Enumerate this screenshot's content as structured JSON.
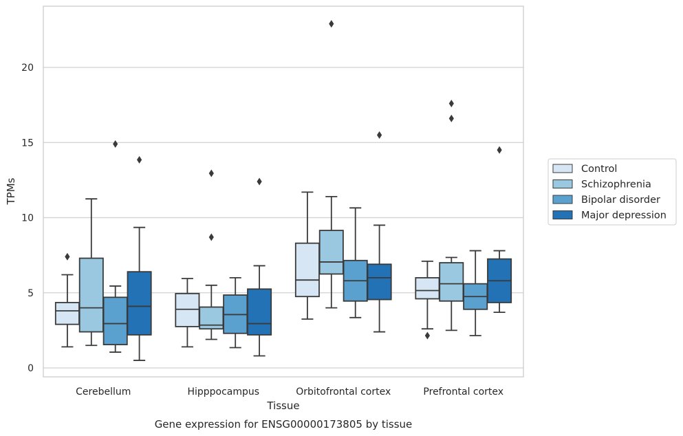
{
  "chart_data": {
    "type": "box",
    "caption": "Gene expression for ENSG00000173805 by tissue",
    "xlabel": "Tissue",
    "ylabel": "TPMs",
    "ylim": [
      -0.5,
      24
    ],
    "yticks": [
      0,
      5,
      10,
      15,
      20
    ],
    "grid": "horizontal",
    "legend_position": "right",
    "categories": [
      "Cerebellum",
      "Hipppocampus",
      "Orbitofrontal cortex",
      "Prefrontal cortex"
    ],
    "series": [
      {
        "name": "Control",
        "color": "#d6e6f4",
        "boxes": [
          {
            "whislo": 1.4,
            "q1": 2.9,
            "med": 3.8,
            "q3": 4.35,
            "whishi": 6.2,
            "fliers": [
              7.4
            ]
          },
          {
            "whislo": 1.4,
            "q1": 2.75,
            "med": 3.9,
            "q3": 4.95,
            "whishi": 5.95,
            "fliers": []
          },
          {
            "whislo": 3.25,
            "q1": 4.75,
            "med": 5.85,
            "q3": 8.3,
            "whishi": 11.7,
            "fliers": []
          },
          {
            "whislo": 2.6,
            "q1": 4.6,
            "med": 5.15,
            "q3": 6.0,
            "whishi": 7.1,
            "fliers": [
              2.15
            ]
          }
        ]
      },
      {
        "name": "Schizophrenia",
        "color": "#9ac8e0",
        "boxes": [
          {
            "whislo": 1.5,
            "q1": 2.4,
            "med": 4.0,
            "q3": 7.3,
            "whishi": 11.25,
            "fliers": []
          },
          {
            "whislo": 1.9,
            "q1": 2.6,
            "med": 2.85,
            "q3": 4.05,
            "whishi": 5.5,
            "fliers": [
              8.7,
              12.95
            ]
          },
          {
            "whislo": 4.0,
            "q1": 6.25,
            "med": 7.05,
            "q3": 9.15,
            "whishi": 11.4,
            "fliers": [
              22.9
            ]
          },
          {
            "whislo": 2.5,
            "q1": 4.45,
            "med": 5.6,
            "q3": 7.0,
            "whishi": 7.35,
            "fliers": [
              16.6,
              17.6
            ]
          }
        ]
      },
      {
        "name": "Bipolar disorder",
        "color": "#5aa1cf",
        "boxes": [
          {
            "whislo": 1.05,
            "q1": 1.55,
            "med": 2.95,
            "q3": 4.7,
            "whishi": 5.45,
            "fliers": [
              14.9
            ]
          },
          {
            "whislo": 1.35,
            "q1": 2.3,
            "med": 3.55,
            "q3": 4.85,
            "whishi": 6.0,
            "fliers": []
          },
          {
            "whislo": 3.35,
            "q1": 4.45,
            "med": 5.8,
            "q3": 7.15,
            "whishi": 10.65,
            "fliers": []
          },
          {
            "whislo": 2.15,
            "q1": 3.9,
            "med": 4.75,
            "q3": 5.6,
            "whishi": 7.8,
            "fliers": []
          }
        ]
      },
      {
        "name": "Major depression",
        "color": "#2272b5",
        "boxes": [
          {
            "whislo": 0.5,
            "q1": 2.2,
            "med": 4.1,
            "q3": 6.4,
            "whishi": 9.35,
            "fliers": [
              13.85
            ]
          },
          {
            "whislo": 0.8,
            "q1": 2.2,
            "med": 2.95,
            "q3": 5.25,
            "whishi": 6.8,
            "fliers": [
              12.4
            ]
          },
          {
            "whislo": 2.4,
            "q1": 4.55,
            "med": 6.0,
            "q3": 6.9,
            "whishi": 9.5,
            "fliers": [
              15.5
            ]
          },
          {
            "whislo": 3.7,
            "q1": 4.35,
            "med": 5.8,
            "q3": 7.25,
            "whishi": 7.8,
            "fliers": [
              14.5
            ]
          }
        ]
      }
    ]
  }
}
